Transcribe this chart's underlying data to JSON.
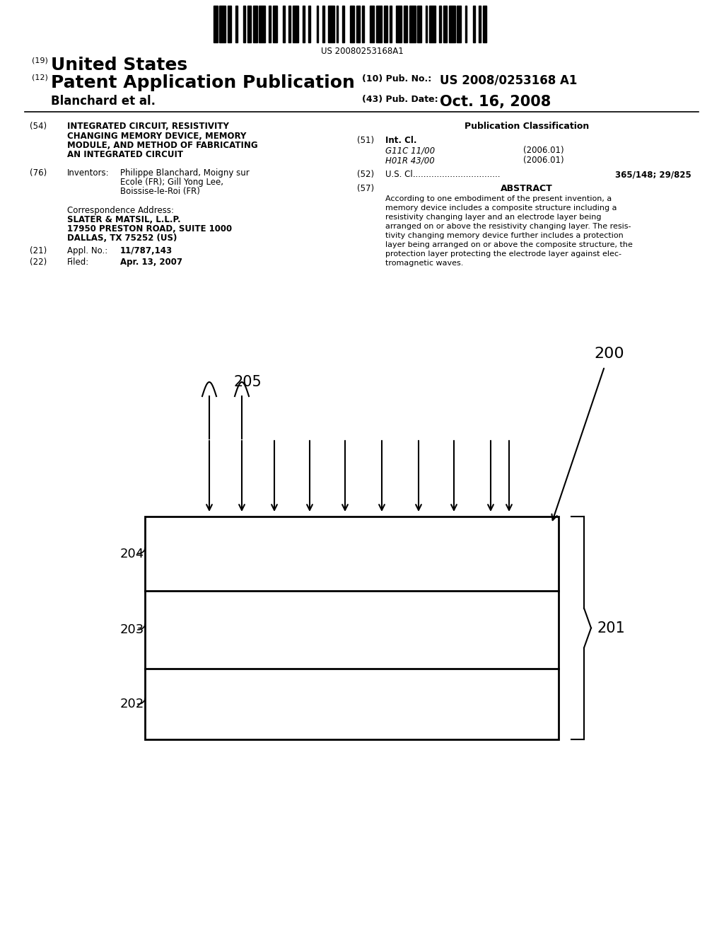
{
  "bg_color": "#ffffff",
  "barcode_text": "US 20080253168A1",
  "title_19": "(19)",
  "title_us": "United States",
  "title_12": "(12)",
  "title_pat": "Patent Application Publication",
  "pub_no_label": "(10) Pub. No.:",
  "pub_no": "US 2008/0253168 A1",
  "author": "Blanchard et al.",
  "pub_date_label": "(43) Pub. Date:",
  "pub_date": "Oct. 16, 2008",
  "label_54": "(54)",
  "title_54_lines": [
    "INTEGRATED CIRCUIT, RESISTIVITY",
    "CHANGING MEMORY DEVICE, MEMORY",
    "MODULE, AND METHOD OF FABRICATING",
    "AN INTEGRATED CIRCUIT"
  ],
  "label_76": "(76)",
  "inventors_label": "Inventors:",
  "inventors_text_lines": [
    "Philippe Blanchard, Moigny sur",
    "Ecole (FR); Gill Yong Lee,",
    "Boissise-le-Roi (FR)"
  ],
  "corr_label": "Correspondence Address:",
  "corr_firm": "SLATER & MATSIL, L.L.P.",
  "corr_addr1": "17950 PRESTON ROAD, SUITE 1000",
  "corr_addr2": "DALLAS, TX 75252 (US)",
  "label_21": "(21)",
  "appl_label": "Appl. No.:",
  "appl_no": "11/787,143",
  "label_22": "(22)",
  "filed_label": "Filed:",
  "filed_date": "Apr. 13, 2007",
  "pub_class_title": "Publication Classification",
  "label_51": "(51)",
  "int_cl_label": "Int. Cl.",
  "int_cl_1": "G11C 11/00",
  "int_cl_1_date": "(2006.01)",
  "int_cl_2": "H01R 43/00",
  "int_cl_2_date": "(2006.01)",
  "label_52": "(52)",
  "us_cl_label": "U.S. Cl.",
  "us_cl_val": "365/148; 29/825",
  "label_57": "(57)",
  "abstract_title": "ABSTRACT",
  "abstract_text_lines": [
    "According to one embodiment of the present invention, a",
    "memory device includes a composite structure including a",
    "resistivity changing layer and an electrode layer being",
    "arranged on or above the resistivity changing layer. The resis-",
    "tivity changing memory device further includes a protection",
    "layer being arranged on or above the composite structure, the",
    "protection layer protecting the electrode layer against elec-",
    "tromagnetic waves."
  ],
  "diagram_label_200": "200",
  "diagram_label_205": "205",
  "diagram_label_204": "204",
  "diagram_label_203": "203",
  "diagram_label_202": "202",
  "diagram_label_201": "201"
}
